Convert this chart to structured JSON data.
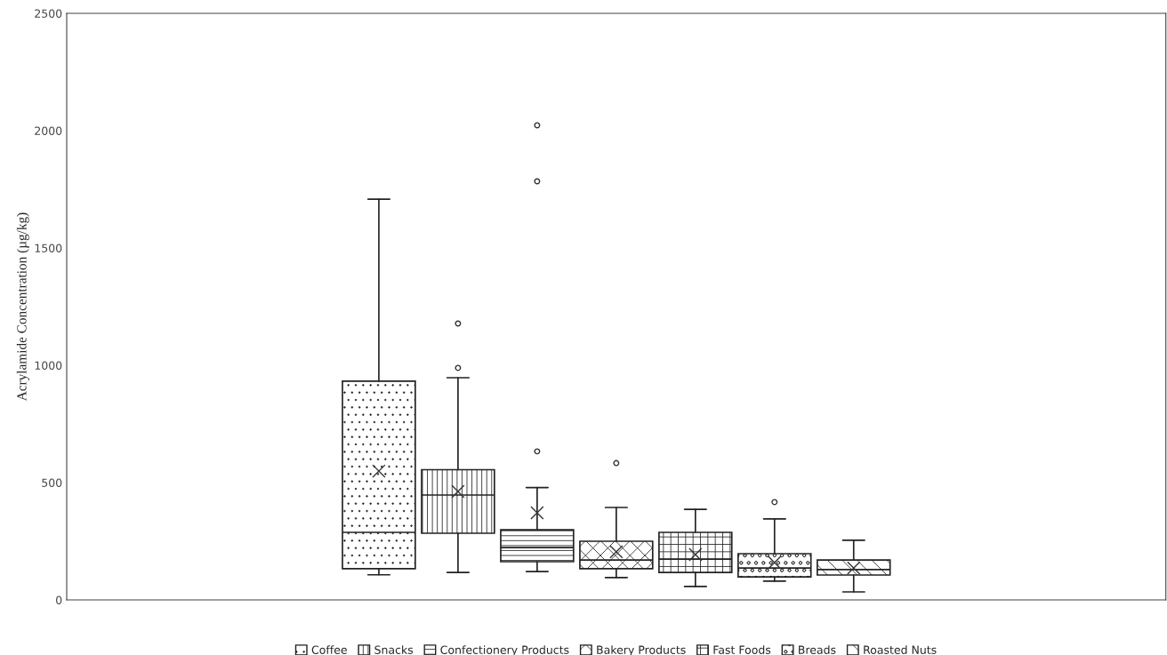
{
  "chart_data": {
    "type": "box",
    "ylabel": "Acrylamide Concentration (µg/kg)",
    "categories": [
      null
    ],
    "ylim": [
      0,
      2500
    ],
    "yticks": [
      0,
      500,
      1000,
      1500,
      2000,
      2500
    ],
    "grid": false,
    "legend": "bottom",
    "series": [
      {
        "name": "Coffee",
        "color": "#222222",
        "boxes": [
          {
            "low": 107,
            "q1": 133,
            "median": 288,
            "q3": 932,
            "high": 1708,
            "mean": 549
          }
        ]
      },
      {
        "name": "Snacks",
        "color": "#222222",
        "boxes": [
          {
            "low": 117,
            "q1": 284,
            "median": 447,
            "q3": 555,
            "high": 947,
            "mean": 462,
            "outliers": [
              989,
              1178
            ]
          }
        ]
      },
      {
        "name": "Confectionery Products",
        "color": "#222222",
        "boxes": [
          {
            "low": 121,
            "q1": 163,
            "median": 223,
            "q3": 299,
            "high": 479,
            "mean": 371,
            "outliers": [
              633,
              1784,
              2023
            ]
          }
        ]
      },
      {
        "name": "Bakery Products",
        "color": "#222222",
        "boxes": [
          {
            "low": 95,
            "q1": 133,
            "median": 170,
            "q3": 250,
            "high": 394,
            "mean": 205,
            "outliers": [
              583
            ]
          }
        ]
      },
      {
        "name": "Fast Foods",
        "color": "#222222",
        "boxes": [
          {
            "low": 57,
            "q1": 117,
            "median": 174,
            "q3": 288,
            "high": 386,
            "mean": 193
          }
        ]
      },
      {
        "name": "Breads",
        "color": "#222222",
        "boxes": [
          {
            "low": 80,
            "q1": 98,
            "median": 136,
            "q3": 197,
            "high": 345,
            "mean": 159,
            "outliers": [
              417
            ]
          }
        ]
      },
      {
        "name": "Roasted Nuts",
        "color": "#222222",
        "boxes": [
          {
            "low": 34,
            "q1": 106,
            "median": 129,
            "q3": 170,
            "high": 254,
            "mean": 136
          }
        ]
      }
    ]
  }
}
